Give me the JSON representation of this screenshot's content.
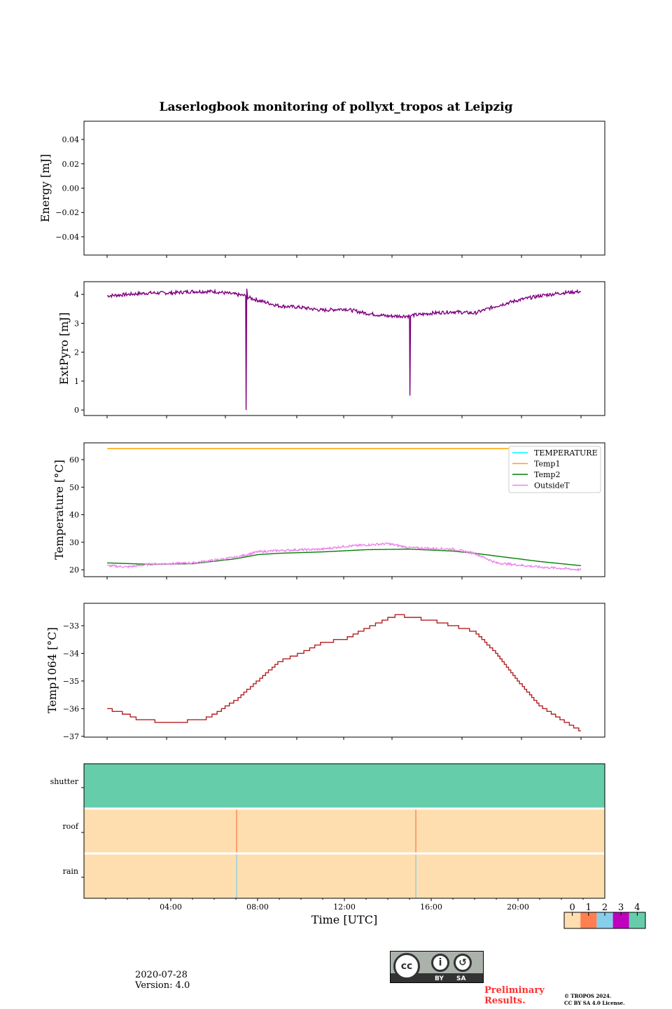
{
  "chart_data": [
    {
      "type": "line",
      "title": "Laserlogbook monitoring of pollyxt_tropos at Leipzig",
      "ylabel": "Energy [mJ]",
      "ylim": [
        -0.055,
        0.055
      ],
      "yticks": [
        0.04,
        0.02,
        0.0,
        -0.02,
        -0.04
      ],
      "ytick_labels": [
        "0.04",
        "0.02",
        "0.00",
        "−0.02",
        "−0.04"
      ],
      "series": []
    },
    {
      "type": "line",
      "ylabel": "ExtPyro [mJ]",
      "ylim": [
        -0.19,
        4.44
      ],
      "yticks": [
        0,
        1,
        2,
        3,
        4
      ],
      "ytick_labels": [
        "0",
        "1",
        "2",
        "3",
        "4"
      ],
      "series": [
        {
          "name": "ExtPyro",
          "color": "#800080",
          "x": [
            1.07,
            2,
            3,
            4,
            5,
            6,
            7,
            7.45,
            7.47,
            7.5,
            7.55,
            8,
            9,
            10,
            11,
            12,
            13,
            14,
            15,
            15.02,
            15.05,
            15.1,
            15.5,
            16,
            17,
            18,
            19,
            20,
            21,
            22,
            22.9
          ],
          "y": [
            3.95,
            4.0,
            4.05,
            4.05,
            4.1,
            4.1,
            4.0,
            3.95,
            0.0,
            4.2,
            3.9,
            3.8,
            3.6,
            3.55,
            3.45,
            3.5,
            3.35,
            3.25,
            3.25,
            0.5,
            3.25,
            3.28,
            3.3,
            3.35,
            3.4,
            3.35,
            3.6,
            3.8,
            3.95,
            4.05,
            4.1
          ]
        }
      ]
    },
    {
      "type": "line",
      "ylabel": "Temperature [°C]",
      "ylim": [
        17.5,
        66.1
      ],
      "yticks": [
        20,
        30,
        40,
        50,
        60
      ],
      "ytick_labels": [
        "20",
        "30",
        "40",
        "50",
        "60"
      ],
      "legend": "top-right",
      "series": [
        {
          "name": "TEMPERATURE",
          "color": "#00ffff",
          "x": [],
          "y": []
        },
        {
          "name": "Temp1",
          "color": "#ffa500",
          "x": [
            1.07,
            22.9
          ],
          "y": [
            64,
            64
          ]
        },
        {
          "name": "Temp2",
          "color": "#008000",
          "x": [
            1.07,
            3,
            5,
            7,
            8,
            9,
            11,
            13,
            15,
            17,
            18,
            19,
            21,
            22.9
          ],
          "y": [
            22.5,
            22,
            22.2,
            24,
            25.5,
            26,
            26.5,
            27.3,
            27.5,
            26.8,
            26,
            25,
            23,
            21.5
          ]
        },
        {
          "name": "OutsideT",
          "color": "#ee82ee",
          "x": [
            1.07,
            2,
            3,
            5,
            7,
            8,
            9,
            11,
            12,
            14,
            15,
            17,
            18,
            19,
            21,
            22,
            22.9
          ],
          "y": [
            21.5,
            21,
            22,
            22.5,
            24.5,
            26.5,
            27,
            27.5,
            28.5,
            29.5,
            28,
            27.5,
            26,
            22.5,
            21,
            20.5,
            20
          ]
        }
      ]
    },
    {
      "type": "line",
      "ylabel": "Temp1064 [°C]",
      "ylim": [
        -37.03,
        -32.19
      ],
      "yticks": [
        -33,
        -34,
        -35,
        -36,
        -37
      ],
      "ytick_labels": [
        "−33",
        "−34",
        "−35",
        "−36",
        "−37"
      ],
      "series": [
        {
          "name": "Temp1064",
          "color": "#b22222",
          "x": [
            1.07,
            1.5,
            2,
            2.5,
            4,
            5.5,
            6,
            7,
            8,
            9,
            10,
            11,
            12,
            13,
            14,
            14.5,
            15,
            16,
            17,
            18,
            19,
            20,
            21,
            22,
            22.9
          ],
          "y": [
            -36,
            -36.1,
            -36.2,
            -36.4,
            -36.5,
            -36.4,
            -36.2,
            -35.7,
            -35,
            -34.3,
            -34,
            -33.6,
            -33.5,
            -33.1,
            -32.75,
            -32.6,
            -32.7,
            -32.8,
            -33,
            -33.2,
            -34,
            -35,
            -35.9,
            -36.4,
            -36.8
          ]
        }
      ]
    },
    {
      "type": "heatmap",
      "xlabel": "Time [UTC]",
      "rows": [
        "shutter",
        "roof",
        "rain"
      ],
      "xlim": [
        0,
        24
      ],
      "xticks": [
        4,
        8,
        12,
        16,
        20
      ],
      "xtick_labels": [
        "04:00",
        "08:00",
        "12:00",
        "16:00",
        "20:00"
      ],
      "default_values": {
        "shutter": 4,
        "roof": 0,
        "rain": 0
      },
      "events": [
        {
          "row": "roof",
          "x": 7.03,
          "value": 1
        },
        {
          "row": "roof",
          "x": 15.29,
          "value": 1
        },
        {
          "row": "rain",
          "x": 7.03,
          "value": 2
        },
        {
          "row": "rain",
          "x": 15.29,
          "value": 2
        }
      ],
      "colorbar": {
        "values": [
          "0",
          "1",
          "2",
          "3",
          "4"
        ],
        "colors": [
          "#fedeae",
          "#ff7f50",
          "#87ceeb",
          "#bf00bf",
          "#66cdaa"
        ]
      }
    }
  ],
  "footer": {
    "date": "2020-07-28",
    "version": "Version: 4.0",
    "license_by": "BY",
    "license_sa": "SA",
    "cc": "cc",
    "preliminary": [
      "Preliminary",
      "Results."
    ],
    "copyright": [
      "© TROPOS 2024.",
      "CC BY SA 4.0 License."
    ]
  }
}
